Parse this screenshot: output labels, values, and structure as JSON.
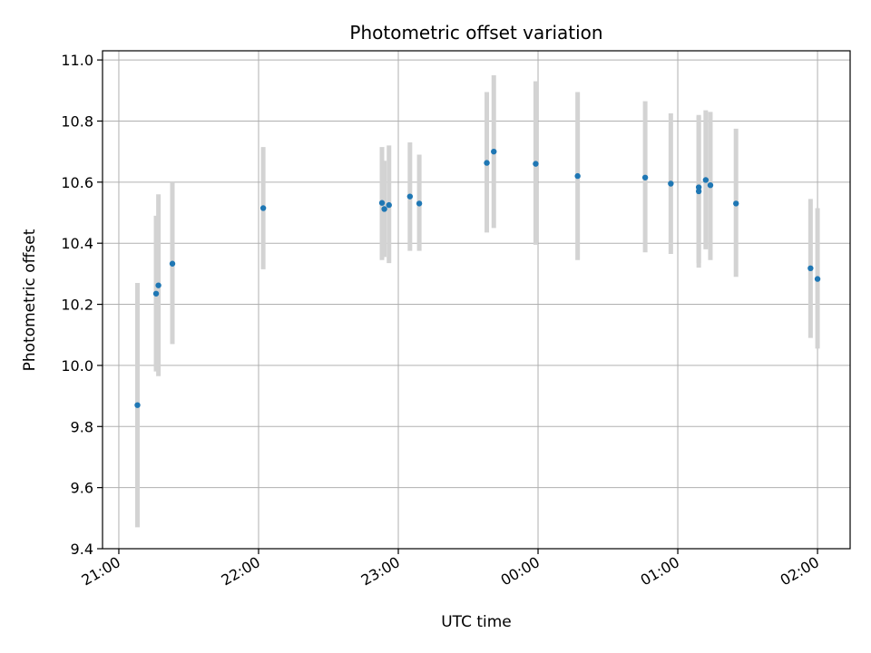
{
  "chart_data": {
    "type": "scatter",
    "title": "Photometric offset variation",
    "xlabel": "UTC time",
    "ylabel": "Photometric offset",
    "x_unit": "UTC clock time (hours after 21:00)",
    "xlim": [
      "20:53",
      "02:14"
    ],
    "ylim": [
      9.4,
      11.03
    ],
    "x_ticks": [
      "21:00",
      "22:00",
      "23:00",
      "00:00",
      "01:00",
      "02:00"
    ],
    "y_ticks": [
      "9.4",
      "9.6",
      "9.8",
      "10.0",
      "10.2",
      "10.4",
      "10.6",
      "10.8",
      "11.0"
    ],
    "grid": true,
    "colors": {
      "point": "#1f77b4",
      "errorbar": "#d3d3d3",
      "grid": "#b0b0b0"
    },
    "points": [
      {
        "time": "21:08",
        "value": 9.87,
        "low": 9.47,
        "high": 10.27
      },
      {
        "time": "21:16",
        "value": 10.235,
        "low": 9.98,
        "high": 10.49
      },
      {
        "time": "21:17",
        "value": 10.262,
        "low": 9.965,
        "high": 10.56
      },
      {
        "time": "21:23",
        "value": 10.333,
        "low": 10.07,
        "high": 10.6
      },
      {
        "time": "22:02",
        "value": 10.515,
        "low": 10.315,
        "high": 10.715
      },
      {
        "time": "22:53",
        "value": 10.532,
        "low": 10.345,
        "high": 10.715
      },
      {
        "time": "22:54",
        "value": 10.512,
        "low": 10.355,
        "high": 10.67
      },
      {
        "time": "22:56",
        "value": 10.525,
        "low": 10.335,
        "high": 10.72
      },
      {
        "time": "23:05",
        "value": 10.553,
        "low": 10.375,
        "high": 10.73
      },
      {
        "time": "23:09",
        "value": 10.53,
        "low": 10.375,
        "high": 10.69
      },
      {
        "time": "23:38",
        "value": 10.663,
        "low": 10.435,
        "high": 10.895
      },
      {
        "time": "23:41",
        "value": 10.7,
        "low": 10.45,
        "high": 10.95
      },
      {
        "time": "23:59",
        "value": 10.66,
        "low": 10.395,
        "high": 10.93
      },
      {
        "time": "00:17",
        "value": 10.62,
        "low": 10.345,
        "high": 10.895
      },
      {
        "time": "00:46",
        "value": 10.615,
        "low": 10.37,
        "high": 10.865
      },
      {
        "time": "00:57",
        "value": 10.595,
        "low": 10.365,
        "high": 10.825
      },
      {
        "time": "01:09",
        "value": 10.57,
        "low": 10.32,
        "high": 10.82
      },
      {
        "time": "01:09",
        "value": 10.583,
        "low": 10.335,
        "high": 10.815
      },
      {
        "time": "01:12",
        "value": 10.607,
        "low": 10.38,
        "high": 10.835
      },
      {
        "time": "01:14",
        "value": 10.59,
        "low": 10.345,
        "high": 10.83
      },
      {
        "time": "01:25",
        "value": 10.53,
        "low": 10.29,
        "high": 10.775
      },
      {
        "time": "01:57",
        "value": 10.318,
        "low": 10.09,
        "high": 10.545
      },
      {
        "time": "02:00",
        "value": 10.283,
        "low": 10.055,
        "high": 10.515
      }
    ]
  }
}
